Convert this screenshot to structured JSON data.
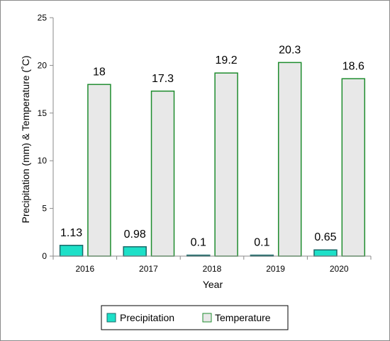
{
  "chart_data": {
    "type": "bar",
    "categories": [
      "2016",
      "2017",
      "2018",
      "2019",
      "2020"
    ],
    "series": [
      {
        "name": "Precipitation",
        "values": [
          1.13,
          0.98,
          0.1,
          0.1,
          0.65
        ],
        "labels": [
          "1.13",
          "0.98",
          "0.1",
          "0.1",
          "0.65"
        ],
        "fill": "#1de0c8",
        "stroke": "#1a6a6a"
      },
      {
        "name": "Temperature",
        "values": [
          18,
          17.3,
          19.2,
          20.3,
          18.6
        ],
        "labels": [
          "18",
          "17.3",
          "19.2",
          "20.3",
          "18.6"
        ],
        "fill": "#e8e8e8",
        "stroke": "#1e8c2e"
      }
    ],
    "title": "",
    "xlabel": "Year",
    "ylabel": "Precipitation (mm) & Temperature (˚C)",
    "ylim": [
      0,
      25
    ],
    "yticks": [
      0,
      5,
      10,
      15,
      20,
      25
    ],
    "grid": false,
    "legend_position": "bottom"
  }
}
